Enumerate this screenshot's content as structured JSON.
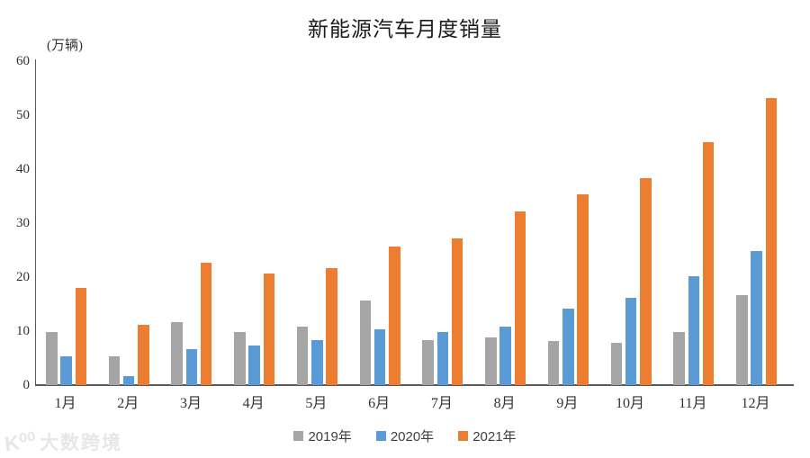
{
  "title": "新能源汽车月度销量",
  "y_axis_unit": "(万辆)",
  "watermark": {
    "logo": "K⁰⁰",
    "text": "大数跨境"
  },
  "legend": {
    "items": [
      {
        "label": "2019年",
        "color": "#A5A5A5"
      },
      {
        "label": "2020年",
        "color": "#5B9BD5"
      },
      {
        "label": "2021年",
        "color": "#ED7D31"
      }
    ]
  },
  "chart_data": {
    "type": "bar",
    "title": "新能源汽车月度销量",
    "xlabel": "",
    "ylabel": "(万辆)",
    "categories": [
      "1月",
      "2月",
      "3月",
      "4月",
      "5月",
      "6月",
      "7月",
      "8月",
      "9月",
      "10月",
      "11月",
      "12月"
    ],
    "series": [
      {
        "name": "2019年",
        "color": "#A5A5A5",
        "values": [
          9.8,
          5.4,
          11.6,
          9.9,
          10.8,
          15.6,
          8.4,
          8.8,
          8.2,
          7.9,
          9.8,
          16.6
        ]
      },
      {
        "name": "2020年",
        "color": "#5B9BD5",
        "values": [
          5.3,
          1.6,
          6.6,
          7.4,
          8.3,
          10.3,
          9.8,
          10.9,
          14.1,
          16.1,
          20.1,
          24.8
        ]
      },
      {
        "name": "2021年",
        "color": "#ED7D31",
        "values": [
          18.0,
          11.1,
          22.6,
          20.7,
          21.7,
          25.7,
          27.1,
          32.1,
          35.3,
          38.3,
          45.0,
          53.1
        ]
      }
    ],
    "ylim": [
      0,
      60
    ],
    "yticks": [
      0,
      10,
      20,
      30,
      40,
      50,
      60
    ],
    "grid": false,
    "legend_position": "bottom"
  }
}
